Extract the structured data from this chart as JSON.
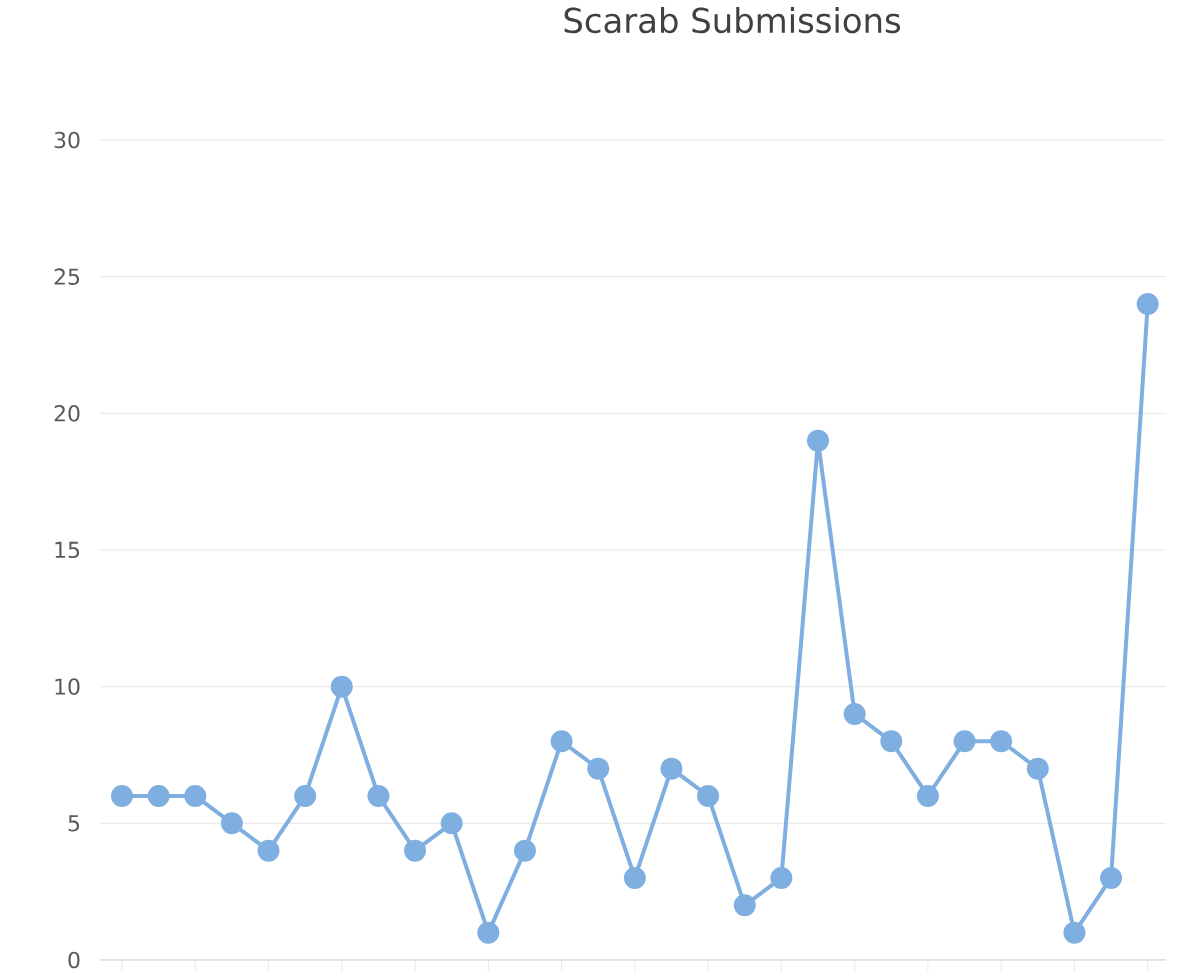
{
  "chart_data": {
    "type": "line",
    "title": "Scarab Submissions",
    "categories": [
      null,
      null,
      null,
      null,
      null,
      null,
      null,
      null,
      null,
      null,
      null,
      null,
      null,
      null,
      null,
      null,
      null,
      null,
      null,
      null,
      null,
      null,
      null,
      null,
      null,
      null,
      null,
      null,
      null
    ],
    "series": [
      {
        "color": "#7fafe0",
        "values": [
          6,
          6,
          6,
          5,
          4,
          6,
          10,
          6,
          4,
          5,
          1,
          4,
          8,
          7,
          3,
          7,
          6,
          2,
          3,
          19,
          9,
          8,
          6,
          8,
          8,
          7,
          1,
          3,
          24
        ]
      }
    ],
    "ylim": [
      0,
      30
    ],
    "yticks": [
      0,
      5,
      10,
      15,
      20,
      25,
      30
    ],
    "grid": "y",
    "marker": "circle",
    "line_style": "solid"
  }
}
